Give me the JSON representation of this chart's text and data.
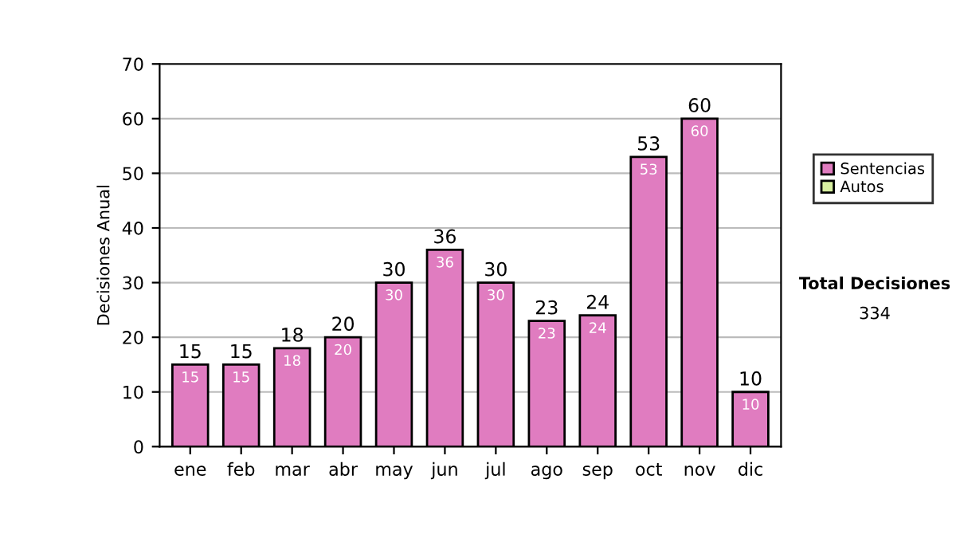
{
  "chart_data": {
    "type": "bar",
    "stacked": true,
    "ylabel": "Decisiones Anual",
    "categories": [
      "ene",
      "feb",
      "mar",
      "abr",
      "may",
      "jun",
      "jul",
      "ago",
      "sep",
      "oct",
      "nov",
      "dic"
    ],
    "series": [
      {
        "name": "Sentencias",
        "color": "#e07cc0",
        "values": [
          15,
          15,
          18,
          20,
          30,
          36,
          30,
          23,
          24,
          53,
          60,
          10
        ],
        "value_labels": [
          "15",
          "15",
          "18",
          "20",
          "30",
          "36",
          "30",
          "23",
          "24",
          "53",
          "60",
          "10"
        ]
      },
      {
        "name": "Autos",
        "color": "#d8f0a0",
        "values": [
          0,
          0,
          0,
          0,
          0,
          0,
          0,
          0,
          0,
          0,
          0,
          0
        ]
      }
    ],
    "totals": [
      "15",
      "15",
      "18",
      "20",
      "30",
      "36",
      "30",
      "23",
      "24",
      "53",
      "60",
      "10"
    ],
    "ylim": [
      0,
      70
    ],
    "yticks": [
      0,
      10,
      20,
      30,
      40,
      50,
      60,
      70
    ],
    "grid": "y",
    "legend": "right",
    "annotations": [
      "Total Decisiones",
      "334"
    ]
  }
}
